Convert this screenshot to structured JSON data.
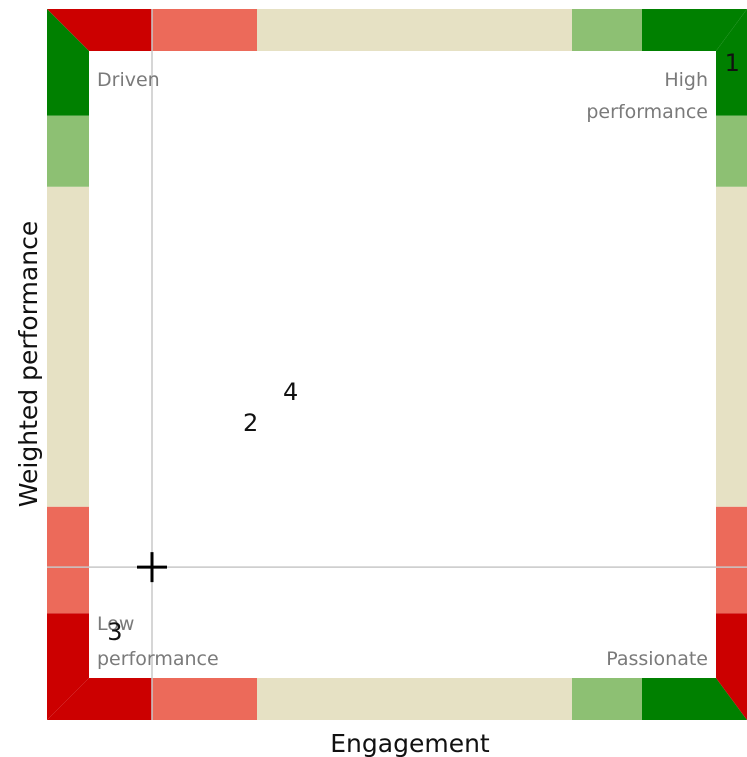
{
  "chart_data": {
    "type": "scatter",
    "title": "",
    "xlabel": "Engagement",
    "ylabel": "Weighted performance",
    "xlim": [
      0,
      100
    ],
    "ylim": [
      0,
      100
    ],
    "grid": false,
    "quadrant_labels": {
      "top_left": "Driven",
      "top_right": [
        "High",
        "performance"
      ],
      "bottom_left": [
        "Low",
        "performance"
      ],
      "bottom_right": "Passionate"
    },
    "points": [
      {
        "label": "1",
        "x": 97.9,
        "y": 92.4
      },
      {
        "label": "2",
        "x": 29.1,
        "y": 41.8
      },
      {
        "label": "3",
        "x": 9.7,
        "y": 12.4
      },
      {
        "label": "4",
        "x": 34.8,
        "y": 46.1
      }
    ],
    "crosshair": {
      "x": 15.0,
      "y": 21.5
    },
    "band_scale": [
      {
        "from": 0,
        "to": 15,
        "color": "#cc0000"
      },
      {
        "from": 15,
        "to": 30,
        "color": "#ec6a5a"
      },
      {
        "from": 30,
        "to": 75,
        "color": "#e6e1c4"
      },
      {
        "from": 75,
        "to": 85,
        "color": "#8dc073"
      },
      {
        "from": 85,
        "to": 100,
        "color": "#008000"
      }
    ],
    "colors": {
      "crosshair_line": "#c8c8c8",
      "marker": "#000000",
      "quadrant_label": "#7a7a7a"
    }
  }
}
